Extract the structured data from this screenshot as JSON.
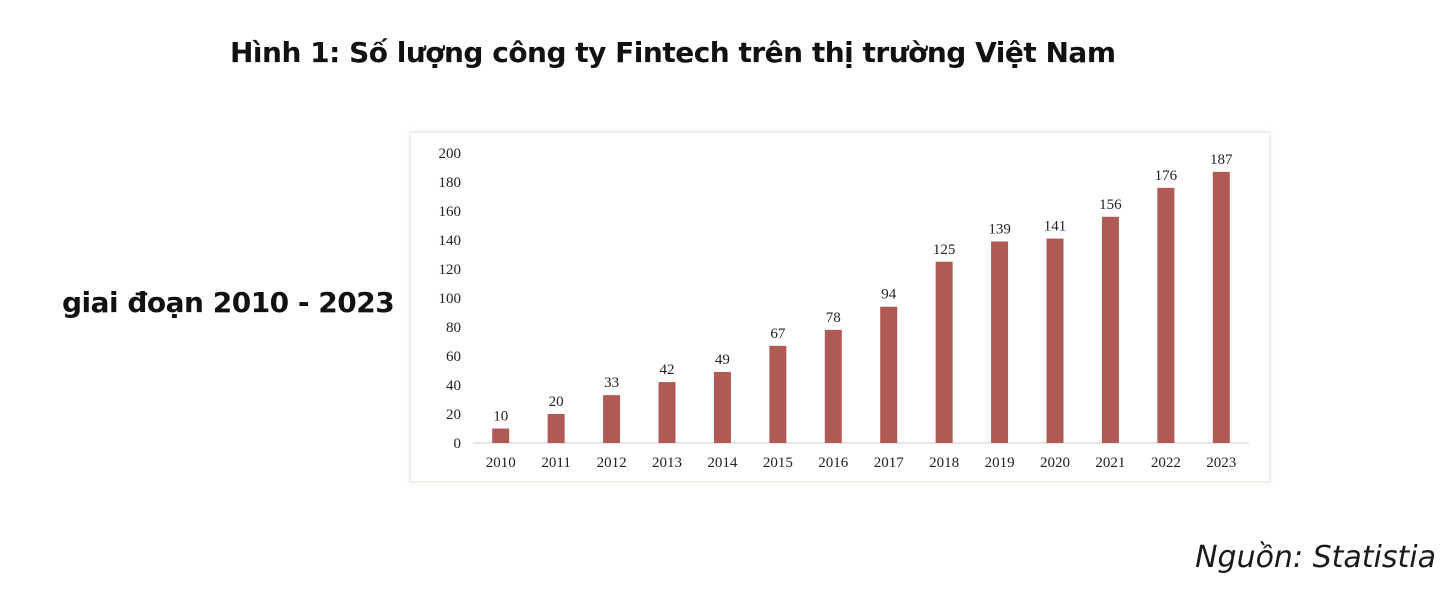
{
  "heading": {
    "line1": "Hình 1: Số lượng công ty Fintech trên thị trường Việt Nam",
    "line2": "giai đoạn 2010 - 2023"
  },
  "source": "Nguồn: Statistia",
  "colors": {
    "bar": "#b05a55",
    "axis": "#cccccc",
    "text": "#222222"
  },
  "chart_data": {
    "type": "bar",
    "title": "",
    "xlabel": "",
    "ylabel": "",
    "categories": [
      "2010",
      "2011",
      "2012",
      "2013",
      "2014",
      "2015",
      "2016",
      "2017",
      "2018",
      "2019",
      "2020",
      "2021",
      "2022",
      "2023"
    ],
    "values": [
      10,
      20,
      33,
      42,
      49,
      67,
      78,
      94,
      125,
      139,
      141,
      156,
      176,
      187
    ],
    "ylim": [
      0,
      200
    ],
    "yticks": [
      0,
      20,
      40,
      60,
      80,
      100,
      120,
      140,
      160,
      180,
      200
    ],
    "grid": false,
    "legend": "none",
    "data_labels": true
  }
}
